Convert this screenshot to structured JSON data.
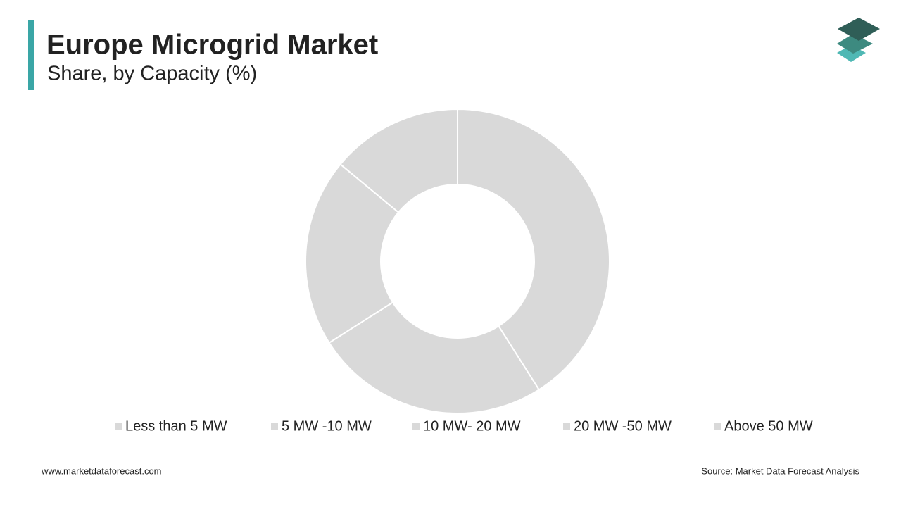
{
  "chart_data": {
    "type": "donut",
    "title": "Europe Microgrid Market",
    "subtitle": "Share, by Capacity (%)",
    "categories": [
      "Less than 5 MW",
      "5 MW -10 MW",
      "10 MW- 20 MW",
      "20 MW -50 MW",
      "Above 50 MW"
    ],
    "values": [
      41,
      25,
      20,
      14,
      null
    ],
    "color": "#d9d9d9",
    "legend": "bottom"
  },
  "footer": {
    "website": "www.marketdataforecast.com",
    "source": "Source: Market Data Forecast Analysis"
  }
}
